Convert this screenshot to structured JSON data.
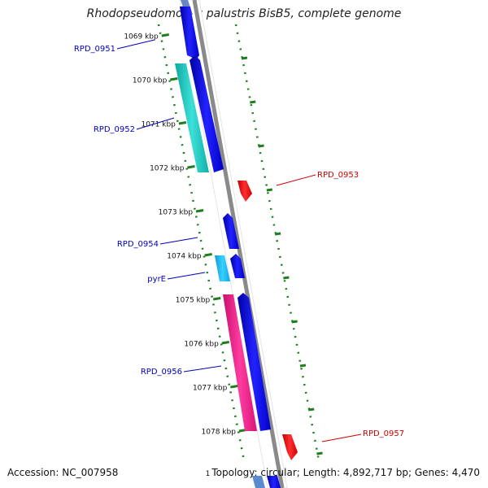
{
  "title": "Rhodopseudomonas palustris BisB5, complete genome",
  "footer": {
    "accession": "Accession: NC_007958",
    "marker": "1",
    "topology": "Topology: circular; Length: 4,892,717 bp; Genes: 4,470"
  },
  "colors": {
    "forward_cds": "#0000ee",
    "reverse_cds": "#ee0000",
    "cyan_gene": "#1ec8c0",
    "light_blue_gene": "#18b4f0",
    "magenta_gene": "#f01e8c",
    "backbone": "#8a8a8a",
    "ruler_ticks": "#1e7d1e",
    "forward_label": "#0000bb",
    "reverse_label": "#cc0000"
  },
  "ruler": [
    {
      "label": "1069 kbp"
    },
    {
      "label": "1070 kbp"
    },
    {
      "label": "1071 kbp"
    },
    {
      "label": "1072 kbp"
    },
    {
      "label": "1073 kbp"
    },
    {
      "label": "1074 kbp"
    },
    {
      "label": "1075 kbp"
    },
    {
      "label": "1076 kbp"
    },
    {
      "label": "1077 kbp"
    },
    {
      "label": "1078 kbp"
    }
  ],
  "genes": [
    {
      "name": "RPD_0951",
      "strand": "forward",
      "color": "blue"
    },
    {
      "name": "RPD_0952",
      "strand": "forward",
      "color": "cyan"
    },
    {
      "name": "RPD_0953",
      "strand": "reverse",
      "color": "red"
    },
    {
      "name": "RPD_0954",
      "strand": "forward",
      "color": "blue"
    },
    {
      "name": "pyrE",
      "strand": "forward",
      "color": "light-blue"
    },
    {
      "name": "RPD_0956",
      "strand": "forward",
      "color": "magenta"
    },
    {
      "name": "RPD_0957",
      "strand": "reverse",
      "color": "red"
    }
  ]
}
